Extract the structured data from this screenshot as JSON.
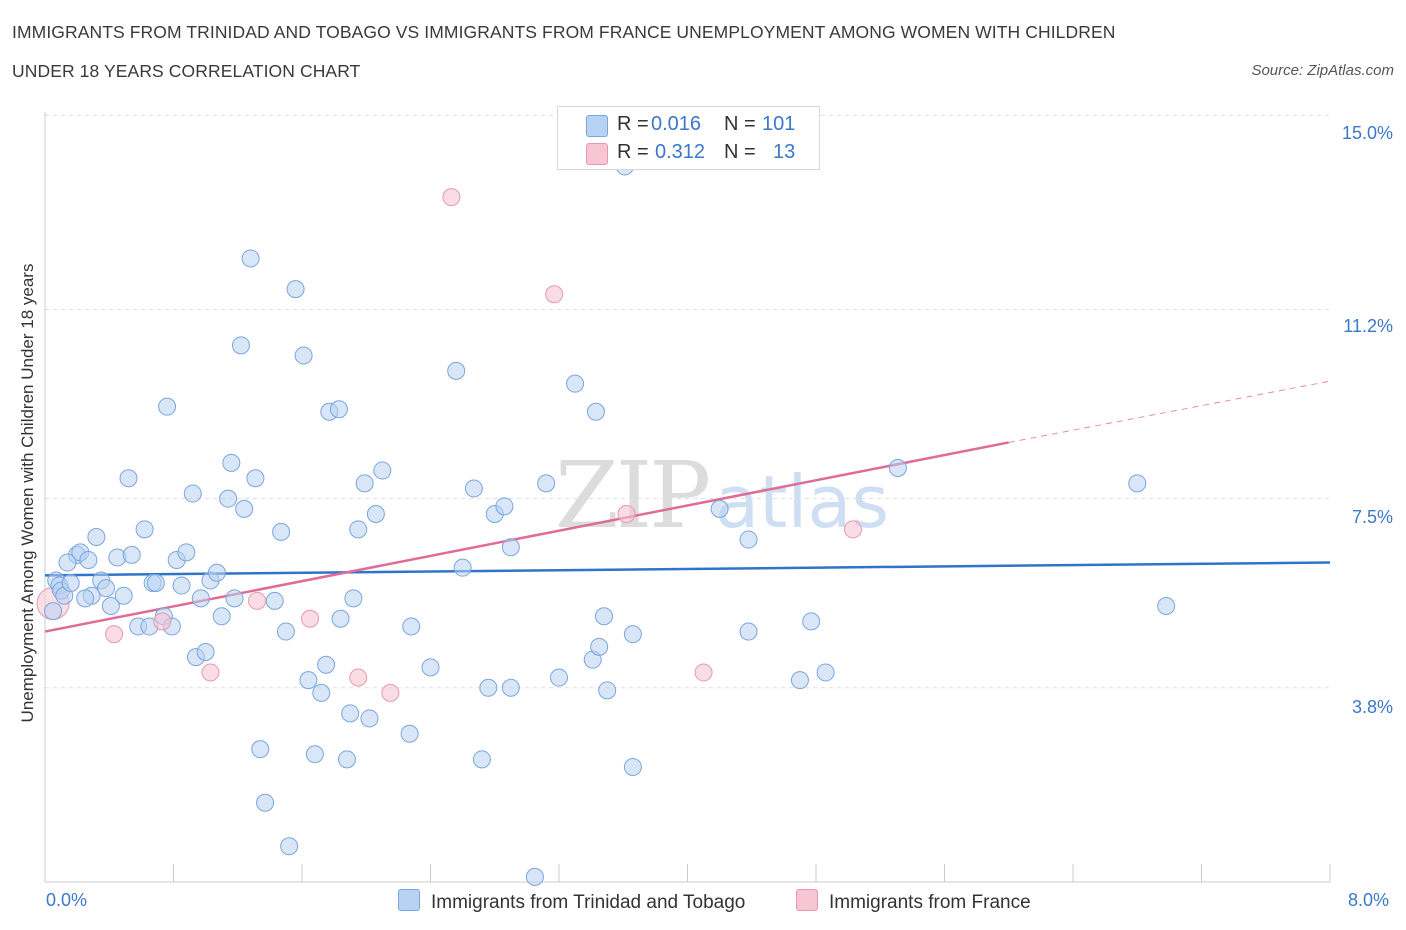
{
  "header": {
    "title_line1": "IMMIGRANTS FROM TRINIDAD AND TOBAGO VS IMMIGRANTS FROM FRANCE UNEMPLOYMENT AMONG WOMEN WITH CHILDREN",
    "title_line2": "UNDER 18 YEARS CORRELATION CHART",
    "source": "Source: ZipAtlas.com"
  },
  "legend_top": {
    "r_label": "R =",
    "n_label": "N =",
    "blue_r": "0.016",
    "blue_n": "101",
    "pink_r": "0.312",
    "pink_n": "13"
  },
  "watermark": {
    "zip": "ZIP",
    "atlas": "atlas"
  },
  "colors": {
    "blue_fill": "#b8d2f3",
    "blue_stroke": "#7aa6dc",
    "blue_line": "#2f74c8",
    "pink_fill": "#f7c5d4",
    "pink_stroke": "#e898b0",
    "pink_line": "#e06b96",
    "tick_text": "#3b78c9"
  },
  "chart_data": {
    "type": "scatter",
    "title": "IMMIGRANTS FROM TRINIDAD AND TOBAGO VS IMMIGRANTS FROM FRANCE UNEMPLOYMENT AMONG WOMEN WITH CHILDREN UNDER 18 YEARS CORRELATION CHART",
    "xlabel": "",
    "ylabel": "Unemployment Among Women with Children Under 18 years",
    "xlim": [
      0,
      8.0
    ],
    "ylim": [
      0,
      15.3
    ],
    "x_tick_labels": [
      "0.0%",
      "8.0%"
    ],
    "y_tick_labels": [
      "15.0%",
      "11.2%",
      "7.5%",
      "3.8%"
    ],
    "y_ticks": [
      15.0,
      11.2,
      7.5,
      3.8
    ],
    "grid": true,
    "legend_position": "bottom",
    "series": [
      {
        "name": "Immigrants from Trinidad and Tobago",
        "R": 0.016,
        "N": 101,
        "trend": {
          "x": [
            0,
            8.0
          ],
          "y": [
            6.0,
            6.25
          ]
        },
        "points": [
          [
            0.05,
            5.3
          ],
          [
            0.07,
            5.9
          ],
          [
            0.09,
            5.8
          ],
          [
            0.1,
            5.7
          ],
          [
            0.12,
            5.6
          ],
          [
            0.16,
            5.85
          ],
          [
            0.2,
            6.4
          ],
          [
            0.22,
            6.45
          ],
          [
            0.27,
            6.3
          ],
          [
            0.29,
            5.6
          ],
          [
            0.32,
            6.75
          ],
          [
            0.35,
            5.9
          ],
          [
            0.38,
            5.75
          ],
          [
            0.41,
            5.4
          ],
          [
            0.45,
            6.35
          ],
          [
            0.49,
            5.6
          ],
          [
            0.52,
            7.9
          ],
          [
            0.54,
            6.4
          ],
          [
            0.58,
            5.0
          ],
          [
            0.62,
            6.9
          ],
          [
            0.65,
            5.0
          ],
          [
            0.67,
            5.85
          ],
          [
            0.69,
            5.85
          ],
          [
            0.74,
            5.2
          ],
          [
            0.76,
            9.3
          ],
          [
            0.79,
            5.0
          ],
          [
            0.82,
            6.3
          ],
          [
            0.85,
            5.8
          ],
          [
            0.88,
            6.45
          ],
          [
            0.92,
            7.6
          ],
          [
            0.94,
            4.4
          ],
          [
            0.97,
            5.55
          ],
          [
            1.0,
            4.5
          ],
          [
            1.03,
            5.9
          ],
          [
            1.07,
            6.05
          ],
          [
            1.1,
            5.2
          ],
          [
            1.14,
            7.5
          ],
          [
            1.16,
            8.2
          ],
          [
            1.18,
            5.55
          ],
          [
            1.22,
            10.5
          ],
          [
            1.24,
            7.3
          ],
          [
            1.28,
            12.2
          ],
          [
            1.31,
            7.9
          ],
          [
            1.34,
            2.6
          ],
          [
            1.37,
            1.55
          ],
          [
            1.43,
            5.5
          ],
          [
            1.47,
            6.85
          ],
          [
            1.5,
            4.9
          ],
          [
            1.52,
            0.7
          ],
          [
            1.56,
            11.6
          ],
          [
            1.61,
            10.3
          ],
          [
            1.64,
            3.95
          ],
          [
            1.68,
            2.5
          ],
          [
            1.72,
            3.7
          ],
          [
            1.75,
            4.25
          ],
          [
            1.77,
            9.2
          ],
          [
            1.83,
            9.25
          ],
          [
            1.84,
            5.15
          ],
          [
            1.88,
            2.4
          ],
          [
            1.9,
            3.3
          ],
          [
            1.92,
            5.55
          ],
          [
            1.95,
            6.9
          ],
          [
            1.99,
            7.8
          ],
          [
            2.02,
            3.2
          ],
          [
            2.06,
            7.2
          ],
          [
            2.1,
            8.05
          ],
          [
            2.27,
            2.9
          ],
          [
            2.28,
            5.0
          ],
          [
            2.4,
            4.2
          ],
          [
            2.56,
            10.0
          ],
          [
            2.6,
            6.15
          ],
          [
            2.67,
            7.7
          ],
          [
            2.72,
            2.4
          ],
          [
            2.76,
            3.8
          ],
          [
            2.8,
            7.2
          ],
          [
            2.86,
            7.35
          ],
          [
            2.9,
            6.55
          ],
          [
            2.9,
            3.8
          ],
          [
            3.05,
            0.1
          ],
          [
            3.12,
            7.8
          ],
          [
            3.2,
            4.0
          ],
          [
            3.3,
            9.75
          ],
          [
            3.41,
            4.35
          ],
          [
            3.43,
            9.2
          ],
          [
            3.45,
            4.6
          ],
          [
            3.48,
            5.2
          ],
          [
            3.5,
            3.75
          ],
          [
            3.61,
            14.0
          ],
          [
            3.66,
            4.85
          ],
          [
            3.66,
            2.25
          ],
          [
            4.2,
            7.3
          ],
          [
            4.38,
            6.7
          ],
          [
            4.38,
            4.9
          ],
          [
            4.7,
            3.95
          ],
          [
            4.77,
            5.1
          ],
          [
            4.86,
            4.1
          ],
          [
            5.31,
            8.1
          ],
          [
            6.8,
            7.8
          ],
          [
            6.98,
            5.4
          ],
          [
            0.14,
            6.25
          ],
          [
            0.25,
            5.55
          ]
        ]
      },
      {
        "name": "Immigrants from France",
        "R": 0.312,
        "N": 13,
        "trend_solid": {
          "x": [
            0,
            6.0
          ],
          "y": [
            4.9,
            8.6
          ]
        },
        "trend_dashed": {
          "x": [
            6.0,
            8.0
          ],
          "y": [
            8.6,
            9.8
          ]
        },
        "points": [
          [
            0.05,
            5.45
          ],
          [
            0.43,
            4.85
          ],
          [
            0.73,
            5.1
          ],
          [
            1.03,
            4.1
          ],
          [
            1.32,
            5.5
          ],
          [
            1.65,
            5.15
          ],
          [
            1.95,
            4.0
          ],
          [
            2.15,
            3.7
          ],
          [
            2.53,
            13.4
          ],
          [
            3.17,
            11.5
          ],
          [
            3.62,
            7.2
          ],
          [
            4.1,
            4.1
          ],
          [
            5.03,
            6.9
          ]
        ]
      }
    ]
  }
}
